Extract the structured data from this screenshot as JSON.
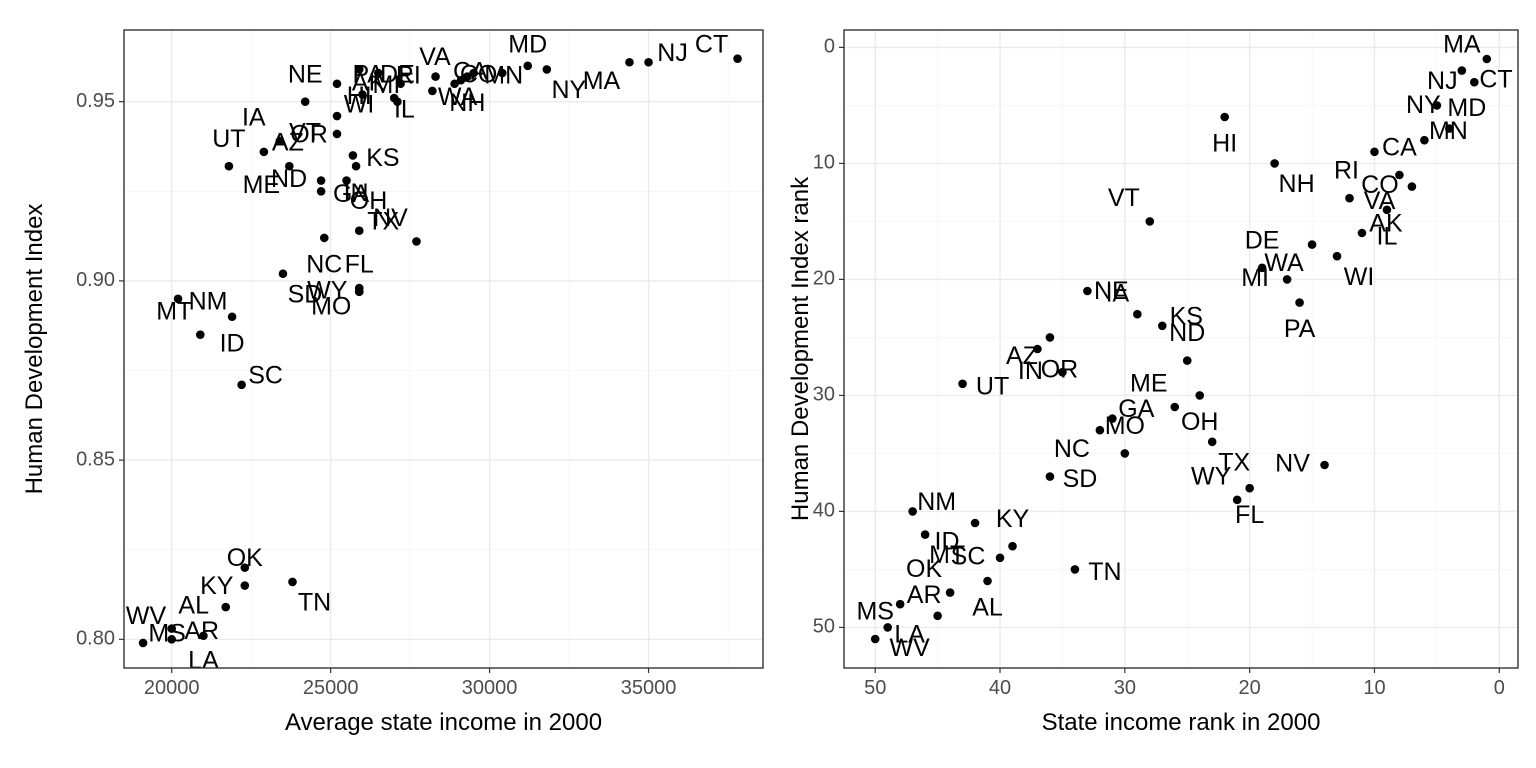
{
  "chart_data": [
    {
      "type": "scatter",
      "xlabel": "Average state income in 2000",
      "ylabel": "Human Development Index",
      "xlim": [
        18500,
        38600
      ],
      "ylim": [
        0.792,
        0.97
      ],
      "xticks": [
        20000,
        25000,
        30000,
        35000
      ],
      "xtick_labels": [
        "20000",
        "25000",
        "30000",
        "35000"
      ],
      "yticks": [
        0.8,
        0.85,
        0.9,
        0.95
      ],
      "ytick_labels": [
        "0.80",
        "0.85",
        "0.90",
        "0.95"
      ],
      "x_reversed": false,
      "y_reversed": false,
      "grid": true,
      "points": [
        {
          "label": "CT",
          "x": 37800,
          "y": 0.962
        },
        {
          "label": "NJ",
          "x": 35000,
          "y": 0.961
        },
        {
          "label": "MA",
          "x": 34400,
          "y": 0.961
        },
        {
          "label": "NY",
          "x": 31800,
          "y": 0.959
        },
        {
          "label": "MD",
          "x": 31200,
          "y": 0.96
        },
        {
          "label": "CA",
          "x": 30400,
          "y": 0.958
        },
        {
          "label": "MN",
          "x": 29500,
          "y": 0.958
        },
        {
          "label": "NH",
          "x": 29300,
          "y": 0.957
        },
        {
          "label": "VA",
          "x": 29100,
          "y": 0.956
        },
        {
          "label": "CO",
          "x": 28900,
          "y": 0.955
        },
        {
          "label": "IL",
          "x": 28200,
          "y": 0.953
        },
        {
          "label": "WA",
          "x": 28300,
          "y": 0.957
        },
        {
          "label": "DE",
          "x": 27100,
          "y": 0.95
        },
        {
          "label": "AK",
          "x": 27200,
          "y": 0.955
        },
        {
          "label": "RI",
          "x": 26500,
          "y": 0.958
        },
        {
          "label": "HI",
          "x": 25900,
          "y": 0.959
        },
        {
          "label": "PA",
          "x": 27000,
          "y": 0.951
        },
        {
          "label": "MI",
          "x": 26000,
          "y": 0.952
        },
        {
          "label": "OR",
          "x": 25200,
          "y": 0.946
        },
        {
          "label": "WI",
          "x": 25200,
          "y": 0.955
        },
        {
          "label": "NE",
          "x": 24200,
          "y": 0.95
        },
        {
          "label": "VT",
          "x": 25200,
          "y": 0.941
        },
        {
          "label": "KS",
          "x": 25700,
          "y": 0.935
        },
        {
          "label": "IN",
          "x": 25800,
          "y": 0.932
        },
        {
          "label": "IA",
          "x": 23400,
          "y": 0.939
        },
        {
          "label": "AZ",
          "x": 22900,
          "y": 0.936
        },
        {
          "label": "ME",
          "x": 23700,
          "y": 0.932
        },
        {
          "label": "OH",
          "x": 25500,
          "y": 0.928
        },
        {
          "label": "UT",
          "x": 21800,
          "y": 0.932
        },
        {
          "label": "ND",
          "x": 24700,
          "y": 0.928
        },
        {
          "label": "GA",
          "x": 24700,
          "y": 0.925
        },
        {
          "label": "NC",
          "x": 24800,
          "y": 0.912
        },
        {
          "label": "NV",
          "x": 27700,
          "y": 0.911
        },
        {
          "label": "TX",
          "x": 25900,
          "y": 0.914
        },
        {
          "label": "MO",
          "x": 25900,
          "y": 0.898
        },
        {
          "label": "SD",
          "x": 23500,
          "y": 0.902
        },
        {
          "label": "FL",
          "x": 25900,
          "y": 0.897
        },
        {
          "label": "WY",
          "x": 25900,
          "y": 0.897
        },
        {
          "label": "NM",
          "x": 20200,
          "y": 0.895
        },
        {
          "label": "ID",
          "x": 21900,
          "y": 0.89
        },
        {
          "label": "MT",
          "x": 20900,
          "y": 0.885
        },
        {
          "label": "SC",
          "x": 22200,
          "y": 0.871
        },
        {
          "label": "KY",
          "x": 22300,
          "y": 0.82
        },
        {
          "label": "TN",
          "x": 23800,
          "y": 0.816
        },
        {
          "label": "OK",
          "x": 22300,
          "y": 0.815
        },
        {
          "label": "AL",
          "x": 21700,
          "y": 0.809
        },
        {
          "label": "AR",
          "x": 20000,
          "y": 0.803
        },
        {
          "label": "LA",
          "x": 21000,
          "y": 0.801
        },
        {
          "label": "WV",
          "x": 20000,
          "y": 0.8
        },
        {
          "label": "MS",
          "x": 19100,
          "y": 0.799
        }
      ]
    },
    {
      "type": "scatter",
      "xlabel": "State income rank in 2000",
      "ylabel": "Human Development Index rank",
      "xlim": [
        52.5,
        -1.5
      ],
      "ylim": [
        53.5,
        -1.5
      ],
      "xticks": [
        50,
        40,
        30,
        20,
        10,
        0
      ],
      "xtick_labels": [
        "50",
        "40",
        "30",
        "20",
        "10",
        "0"
      ],
      "yticks": [
        0,
        10,
        20,
        30,
        40,
        50
      ],
      "ytick_labels": [
        "0",
        "10",
        "20",
        "30",
        "40",
        "50"
      ],
      "x_reversed": true,
      "y_reversed": true,
      "grid": true,
      "points": [
        {
          "label": "CT",
          "x": 1,
          "y": 1
        },
        {
          "label": "MA",
          "x": 3,
          "y": 2
        },
        {
          "label": "NJ",
          "x": 2,
          "y": 3
        },
        {
          "label": "MD",
          "x": 5,
          "y": 5
        },
        {
          "label": "HI",
          "x": 22,
          "y": 6
        },
        {
          "label": "NY",
          "x": 4,
          "y": 7
        },
        {
          "label": "MN",
          "x": 6,
          "y": 8
        },
        {
          "label": "RI",
          "x": 10,
          "y": 9
        },
        {
          "label": "NH",
          "x": 18,
          "y": 10
        },
        {
          "label": "CA",
          "x": 8,
          "y": 11
        },
        {
          "label": "CO",
          "x": 7,
          "y": 12
        },
        {
          "label": "VA",
          "x": 12,
          "y": 13
        },
        {
          "label": "IL",
          "x": 9,
          "y": 14
        },
        {
          "label": "VT",
          "x": 28,
          "y": 15
        },
        {
          "label": "AK",
          "x": 11,
          "y": 16
        },
        {
          "label": "WA",
          "x": 15,
          "y": 17
        },
        {
          "label": "WI",
          "x": 13,
          "y": 18
        },
        {
          "label": "DE",
          "x": 19,
          "y": 19
        },
        {
          "label": "MI",
          "x": 17,
          "y": 20
        },
        {
          "label": "IA",
          "x": 33,
          "y": 21
        },
        {
          "label": "PA",
          "x": 16,
          "y": 22
        },
        {
          "label": "NE",
          "x": 29,
          "y": 23
        },
        {
          "label": "KS",
          "x": 27,
          "y": 24
        },
        {
          "label": "AZ",
          "x": 36,
          "y": 25
        },
        {
          "label": "OR",
          "x": 37,
          "y": 26
        },
        {
          "label": "ND",
          "x": 25,
          "y": 27
        },
        {
          "label": "IN",
          "x": 35,
          "y": 28
        },
        {
          "label": "UT",
          "x": 43,
          "y": 29
        },
        {
          "label": "OH",
          "x": 24,
          "y": 30
        },
        {
          "label": "ME",
          "x": 26,
          "y": 31
        },
        {
          "label": "GA",
          "x": 31,
          "y": 32
        },
        {
          "label": "NC",
          "x": 32,
          "y": 33
        },
        {
          "label": "TX",
          "x": 23,
          "y": 34
        },
        {
          "label": "MO",
          "x": 30,
          "y": 35
        },
        {
          "label": "NV",
          "x": 14,
          "y": 36
        },
        {
          "label": "SD",
          "x": 36,
          "y": 37
        },
        {
          "label": "FL",
          "x": 20,
          "y": 38
        },
        {
          "label": "WY",
          "x": 21,
          "y": 39
        },
        {
          "label": "NM",
          "x": 47,
          "y": 40
        },
        {
          "label": "ID",
          "x": 42,
          "y": 41
        },
        {
          "label": "MT",
          "x": 46,
          "y": 42
        },
        {
          "label": "KY",
          "x": 39,
          "y": 43
        },
        {
          "label": "SC",
          "x": 40,
          "y": 44
        },
        {
          "label": "TN",
          "x": 34,
          "y": 45
        },
        {
          "label": "AL",
          "x": 41,
          "y": 46
        },
        {
          "label": "OK",
          "x": 44,
          "y": 47
        },
        {
          "label": "AR",
          "x": 48,
          "y": 48
        },
        {
          "label": "LA",
          "x": 45,
          "y": 49
        },
        {
          "label": "WV",
          "x": 49,
          "y": 50
        },
        {
          "label": "MS",
          "x": 50,
          "y": 51
        }
      ]
    }
  ]
}
